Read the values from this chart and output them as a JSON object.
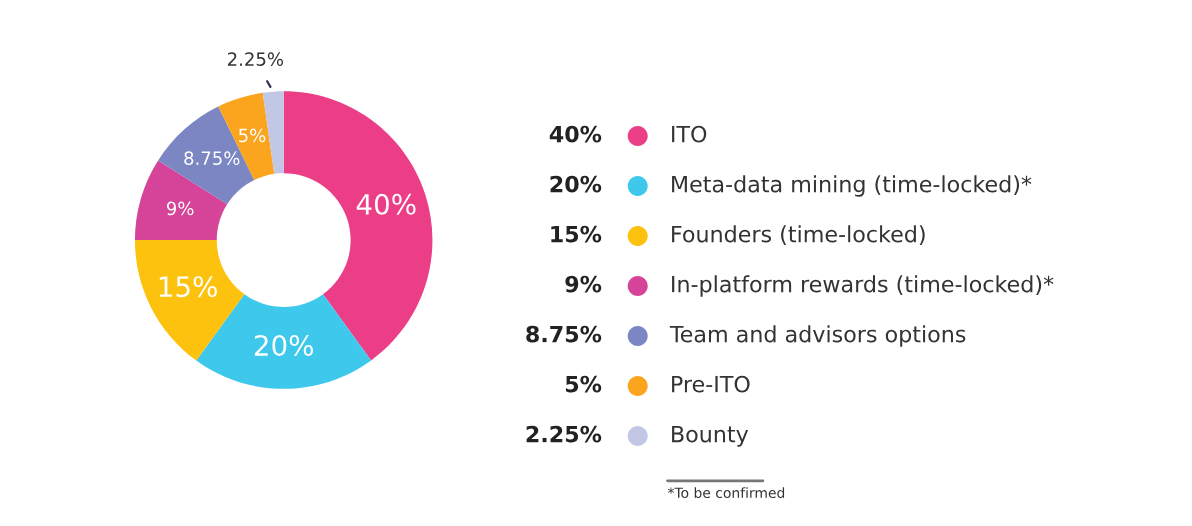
{
  "chart_data": {
    "type": "donut",
    "categories": [
      "ITO",
      "Meta-data mining (time-locked)*",
      "Founders (time-locked)",
      "In-platform rewards (time-locked)*",
      "Team and advisors options",
      "Pre-ITO",
      "Bounty"
    ],
    "values": [
      40,
      20,
      15,
      9,
      8.75,
      5,
      2.25
    ],
    "value_labels": [
      "40%",
      "20%",
      "15%",
      "9%",
      "8.75%",
      "5%",
      "2.25%"
    ],
    "colors": [
      "#ec3d87",
      "#3ec8ec",
      "#fdc20e",
      "#d6449a",
      "#7b86c2",
      "#fba51f",
      "#c3c7e6"
    ],
    "legend": "right",
    "annotations": [
      "*To be confirmed"
    ]
  }
}
